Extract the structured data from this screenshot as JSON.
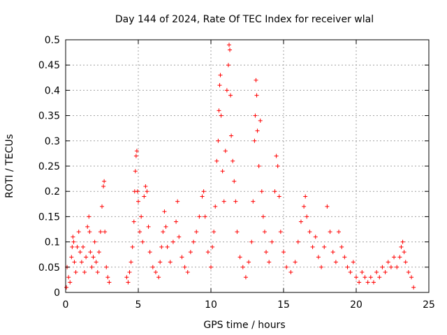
{
  "chart_data": {
    "type": "scatter",
    "title": "Day 144 of 2024, Rate Of TEC Index for receiver wlal",
    "xlabel": "GPS time / hours",
    "ylabel": "ROTI / TECUs",
    "xlim": [
      0,
      25
    ],
    "ylim": [
      0,
      0.5
    ],
    "x_ticks": [
      "0",
      "5",
      "10",
      "15",
      "20",
      "25"
    ],
    "y_ticks": [
      "0",
      "0.05",
      "0.1",
      "0.15",
      "0.2",
      "0.25",
      "0.3",
      "0.35",
      "0.4",
      "0.45",
      "0.5"
    ],
    "grid": true,
    "marker": "plus",
    "color": "#ff0000",
    "series": [
      {
        "points": [
          [
            0.05,
            0.01
          ],
          [
            0.1,
            0.05
          ],
          [
            0.2,
            0.03
          ],
          [
            0.3,
            0.02
          ],
          [
            0.4,
            0.07
          ],
          [
            0.45,
            0.09
          ],
          [
            0.5,
            0.11
          ],
          [
            0.55,
            0.1
          ],
          [
            0.6,
            0.06
          ],
          [
            0.7,
            0.04
          ],
          [
            0.8,
            0.09
          ],
          [
            0.9,
            0.12
          ],
          [
            1.0,
            0.08
          ],
          [
            1.1,
            0.06
          ],
          [
            1.2,
            0.09
          ],
          [
            1.3,
            0.04
          ],
          [
            1.4,
            0.07
          ],
          [
            1.5,
            0.13
          ],
          [
            1.6,
            0.15
          ],
          [
            1.65,
            0.12
          ],
          [
            1.7,
            0.08
          ],
          [
            1.8,
            0.05
          ],
          [
            1.9,
            0.07
          ],
          [
            2.0,
            0.1
          ],
          [
            2.1,
            0.06
          ],
          [
            2.2,
            0.04
          ],
          [
            2.3,
            0.08
          ],
          [
            2.4,
            0.12
          ],
          [
            2.5,
            0.17
          ],
          [
            2.6,
            0.21
          ],
          [
            2.65,
            0.22
          ],
          [
            2.7,
            0.12
          ],
          [
            2.8,
            0.05
          ],
          [
            2.9,
            0.03
          ],
          [
            3.0,
            0.02
          ],
          [
            4.2,
            0.03
          ],
          [
            4.3,
            0.02
          ],
          [
            4.4,
            0.04
          ],
          [
            4.5,
            0.06
          ],
          [
            4.6,
            0.09
          ],
          [
            4.7,
            0.14
          ],
          [
            4.75,
            0.2
          ],
          [
            4.8,
            0.24
          ],
          [
            4.85,
            0.27
          ],
          [
            4.9,
            0.28
          ],
          [
            4.95,
            0.2
          ],
          [
            5.0,
            0.18
          ],
          [
            5.1,
            0.12
          ],
          [
            5.2,
            0.15
          ],
          [
            5.3,
            0.1
          ],
          [
            5.4,
            0.19
          ],
          [
            5.5,
            0.21
          ],
          [
            5.6,
            0.2
          ],
          [
            5.7,
            0.13
          ],
          [
            5.8,
            0.08
          ],
          [
            6.0,
            0.05
          ],
          [
            6.2,
            0.04
          ],
          [
            6.4,
            0.03
          ],
          [
            6.5,
            0.06
          ],
          [
            6.6,
            0.09
          ],
          [
            6.7,
            0.12
          ],
          [
            6.8,
            0.16
          ],
          [
            6.9,
            0.13
          ],
          [
            7.0,
            0.09
          ],
          [
            7.2,
            0.06
          ],
          [
            7.4,
            0.1
          ],
          [
            7.6,
            0.14
          ],
          [
            7.7,
            0.18
          ],
          [
            7.8,
            0.11
          ],
          [
            8.0,
            0.07
          ],
          [
            8.2,
            0.05
          ],
          [
            8.4,
            0.04
          ],
          [
            8.6,
            0.08
          ],
          [
            8.8,
            0.1
          ],
          [
            9.0,
            0.12
          ],
          [
            9.2,
            0.15
          ],
          [
            9.4,
            0.19
          ],
          [
            9.5,
            0.2
          ],
          [
            9.6,
            0.15
          ],
          [
            9.8,
            0.08
          ],
          [
            10.0,
            0.05
          ],
          [
            10.1,
            0.09
          ],
          [
            10.2,
            0.12
          ],
          [
            10.3,
            0.17
          ],
          [
            10.4,
            0.26
          ],
          [
            10.5,
            0.3
          ],
          [
            10.55,
            0.36
          ],
          [
            10.6,
            0.41
          ],
          [
            10.65,
            0.43
          ],
          [
            10.7,
            0.35
          ],
          [
            10.8,
            0.24
          ],
          [
            10.9,
            0.18
          ],
          [
            11.0,
            0.28
          ],
          [
            11.1,
            0.4
          ],
          [
            11.2,
            0.45
          ],
          [
            11.25,
            0.49
          ],
          [
            11.3,
            0.48
          ],
          [
            11.35,
            0.39
          ],
          [
            11.4,
            0.31
          ],
          [
            11.5,
            0.26
          ],
          [
            11.6,
            0.22
          ],
          [
            11.7,
            0.18
          ],
          [
            11.8,
            0.12
          ],
          [
            12.0,
            0.07
          ],
          [
            12.2,
            0.05
          ],
          [
            12.4,
            0.03
          ],
          [
            12.6,
            0.06
          ],
          [
            12.8,
            0.1
          ],
          [
            12.9,
            0.18
          ],
          [
            13.0,
            0.3
          ],
          [
            13.05,
            0.35
          ],
          [
            13.1,
            0.42
          ],
          [
            13.15,
            0.39
          ],
          [
            13.2,
            0.32
          ],
          [
            13.3,
            0.25
          ],
          [
            13.4,
            0.34
          ],
          [
            13.5,
            0.2
          ],
          [
            13.6,
            0.15
          ],
          [
            13.7,
            0.12
          ],
          [
            13.8,
            0.08
          ],
          [
            14.0,
            0.06
          ],
          [
            14.2,
            0.1
          ],
          [
            14.4,
            0.2
          ],
          [
            14.5,
            0.27
          ],
          [
            14.6,
            0.25
          ],
          [
            14.7,
            0.19
          ],
          [
            14.8,
            0.12
          ],
          [
            15.0,
            0.08
          ],
          [
            15.2,
            0.05
          ],
          [
            15.5,
            0.04
          ],
          [
            15.8,
            0.06
          ],
          [
            16.0,
            0.1
          ],
          [
            16.2,
            0.14
          ],
          [
            16.4,
            0.17
          ],
          [
            16.5,
            0.19
          ],
          [
            16.6,
            0.15
          ],
          [
            16.8,
            0.12
          ],
          [
            17.0,
            0.09
          ],
          [
            17.2,
            0.11
          ],
          [
            17.4,
            0.07
          ],
          [
            17.6,
            0.05
          ],
          [
            17.8,
            0.09
          ],
          [
            18.0,
            0.17
          ],
          [
            18.2,
            0.12
          ],
          [
            18.4,
            0.08
          ],
          [
            18.6,
            0.06
          ],
          [
            18.8,
            0.12
          ],
          [
            19.0,
            0.09
          ],
          [
            19.2,
            0.07
          ],
          [
            19.4,
            0.05
          ],
          [
            19.6,
            0.04
          ],
          [
            19.8,
            0.06
          ],
          [
            20.0,
            0.03
          ],
          [
            20.2,
            0.02
          ],
          [
            20.4,
            0.04
          ],
          [
            20.6,
            0.03
          ],
          [
            20.8,
            0.02
          ],
          [
            21.0,
            0.03
          ],
          [
            21.2,
            0.02
          ],
          [
            21.4,
            0.04
          ],
          [
            21.6,
            0.03
          ],
          [
            21.8,
            0.05
          ],
          [
            22.0,
            0.04
          ],
          [
            22.2,
            0.06
          ],
          [
            22.4,
            0.05
          ],
          [
            22.6,
            0.07
          ],
          [
            22.8,
            0.05
          ],
          [
            23.0,
            0.07
          ],
          [
            23.1,
            0.09
          ],
          [
            23.2,
            0.1
          ],
          [
            23.3,
            0.08
          ],
          [
            23.4,
            0.06
          ],
          [
            23.6,
            0.04
          ],
          [
            23.8,
            0.03
          ],
          [
            23.95,
            0.01
          ]
        ]
      }
    ]
  }
}
